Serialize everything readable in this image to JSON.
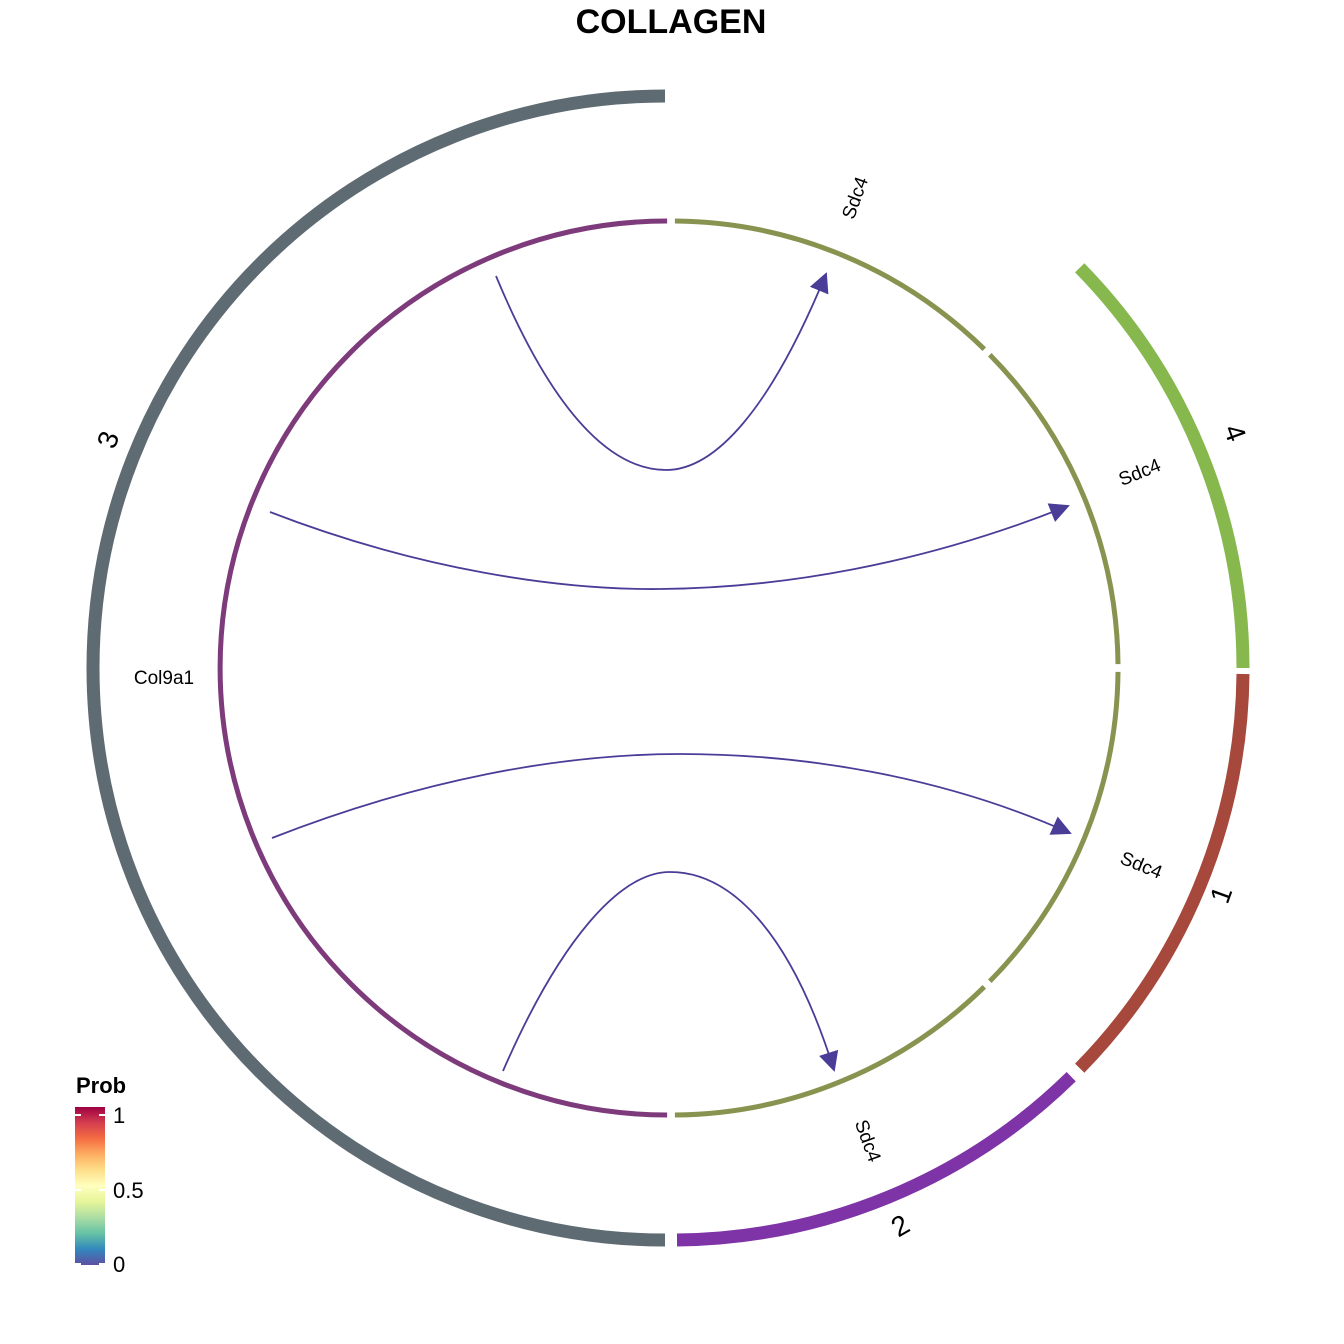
{
  "title": "COLLAGEN",
  "groups": [
    {
      "label": "3",
      "color": "#5F6B73"
    },
    {
      "label": "4",
      "color": "#86B84E"
    },
    {
      "label": "1",
      "color": "#A6483C"
    },
    {
      "label": "2",
      "color": "#7E34A6"
    }
  ],
  "genes": [
    {
      "label": "Col9a1",
      "role": "ligand",
      "group": "3",
      "color": "#7E3B7C"
    },
    {
      "label": "Sdc4",
      "role": "receptor",
      "group": "3",
      "color": "#889350"
    },
    {
      "label": "Sdc4",
      "role": "receptor",
      "group": "4",
      "color": "#889350"
    },
    {
      "label": "Sdc4",
      "role": "receptor",
      "group": "1",
      "color": "#889350"
    },
    {
      "label": "Sdc4",
      "role": "receptor",
      "group": "2",
      "color": "#889350"
    }
  ],
  "links": [
    {
      "from": "Col9a1",
      "to_group": "3"
    },
    {
      "from": "Col9a1",
      "to_group": "4"
    },
    {
      "from": "Col9a1",
      "to_group": "1"
    },
    {
      "from": "Col9a1",
      "to_group": "2"
    }
  ],
  "link_color": "#4A3D98",
  "legend": {
    "title": "Prob",
    "ticks": [
      "1",
      "0.5",
      "0"
    ],
    "gradient": [
      "#9E0142",
      "#D53E4F",
      "#F46D43",
      "#FDAE61",
      "#FEE08B",
      "#FFFFBF",
      "#E6F598",
      "#ABDDA4",
      "#66C2A5",
      "#3288BD",
      "#5E4FA2"
    ]
  }
}
